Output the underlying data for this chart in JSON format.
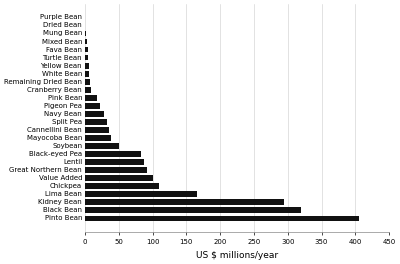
{
  "categories": [
    "Purple Bean",
    "Dried Bean",
    "Mung Bean",
    "Mixed Bean",
    "Fava Bean",
    "Turtle Bean",
    "Yellow Bean",
    "White Bean",
    "Remaining Dried Bean",
    "Cranberry Bean",
    "Pink Bean",
    "Pigeon Pea",
    "Navy Bean",
    "Split Pea",
    "Cannellini Bean",
    "Mayocoba Bean",
    "Soybean",
    "Black-eyed Pea",
    "Lentil",
    "Great Northern Bean",
    "Value Added",
    "Chickpea",
    "Lima Bean",
    "Kidney Bean",
    "Black Bean",
    "Pinto Bean"
  ],
  "values": [
    0,
    0.5,
    2,
    3,
    4,
    5,
    5.5,
    6,
    7,
    9,
    18,
    22,
    28,
    33,
    35,
    38,
    50,
    83,
    88,
    92,
    100,
    110,
    165,
    295,
    320,
    405
  ],
  "bar_color": "#111111",
  "xlabel": "US $ millions/year",
  "xlim": [
    0,
    450
  ],
  "xticks": [
    0,
    50,
    100,
    150,
    200,
    250,
    300,
    350,
    400,
    450
  ],
  "background_color": "#ffffff",
  "tick_fontsize": 5.0,
  "xlabel_fontsize": 6.5,
  "bar_height": 0.72,
  "grid_color": "#cccccc",
  "grid_linewidth": 0.4
}
